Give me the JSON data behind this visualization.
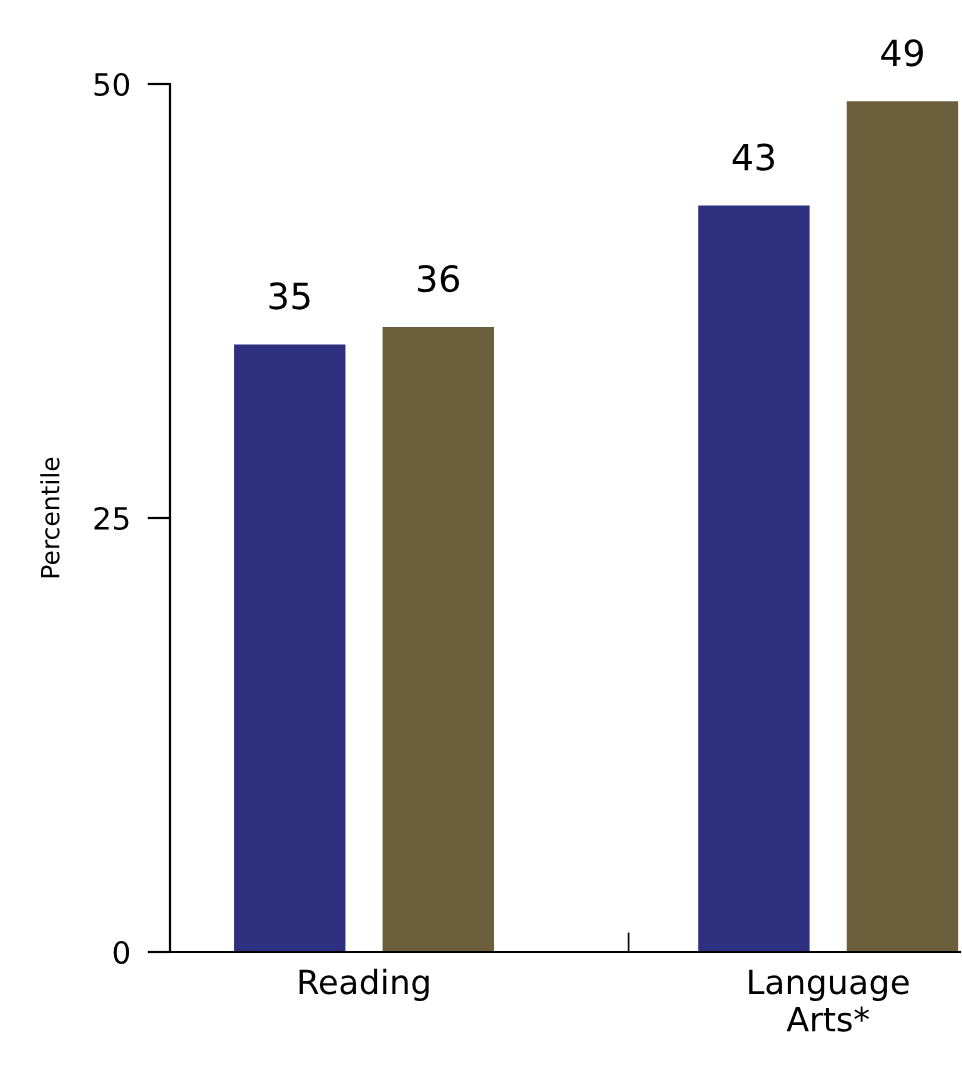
{
  "chart_data": {
    "type": "bar",
    "ylabel": "Percentile",
    "categories": [
      "Reading",
      "Language\nArts*"
    ],
    "series": [
      {
        "color": "#2e3180",
        "values": [
          35,
          43
        ]
      },
      {
        "color": "#6b5e3b",
        "values": [
          36,
          49
        ]
      }
    ],
    "ylim": [
      0,
      50
    ],
    "yticks": [
      0,
      25,
      50
    ],
    "data_labels": true,
    "grid": false,
    "legend": false
  }
}
